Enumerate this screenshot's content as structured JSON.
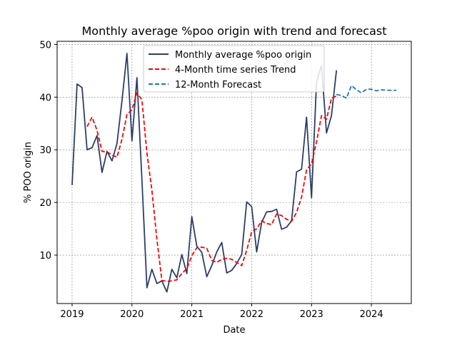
{
  "chart_data": {
    "type": "line",
    "title": "Monthly average %poo origin with trend and forecast",
    "xlabel": "Date",
    "ylabel": "% POO origin",
    "x_ticks": [
      "2019",
      "2020",
      "2021",
      "2022",
      "2023",
      "2024"
    ],
    "y_ticks": [
      "10",
      "20",
      "30",
      "40",
      "50"
    ],
    "xlim": [
      "2018-10",
      "2024-09"
    ],
    "ylim": [
      0.8,
      50.6
    ],
    "grid": true,
    "grid_style": "dashed gray",
    "legend_position": "top-center",
    "series": [
      {
        "name": "Monthly average %poo origin",
        "color": "#2c3e6b",
        "style": "solid",
        "points": [
          [
            "2019-01",
            23.3
          ],
          [
            "2019-02",
            42.5
          ],
          [
            "2019-03",
            41.8
          ],
          [
            "2019-04",
            30.0
          ],
          [
            "2019-05",
            30.4
          ],
          [
            "2019-06",
            32.7
          ],
          [
            "2019-07",
            25.7
          ],
          [
            "2019-08",
            29.7
          ],
          [
            "2019-09",
            27.9
          ],
          [
            "2019-10",
            31.2
          ],
          [
            "2019-11",
            39.3
          ],
          [
            "2019-12",
            48.3
          ],
          [
            "2020-01",
            31.7
          ],
          [
            "2020-02",
            43.7
          ],
          [
            "2020-03",
            24.3
          ],
          [
            "2020-04",
            3.8
          ],
          [
            "2020-05",
            7.3
          ],
          [
            "2020-06",
            4.6
          ],
          [
            "2020-07",
            5.1
          ],
          [
            "2020-08",
            3.0
          ],
          [
            "2020-09",
            7.3
          ],
          [
            "2020-10",
            5.7
          ],
          [
            "2020-11",
            10.1
          ],
          [
            "2020-12",
            6.5
          ],
          [
            "2021-01",
            17.3
          ],
          [
            "2021-02",
            11.7
          ],
          [
            "2021-03",
            10.5
          ],
          [
            "2021-04",
            5.9
          ],
          [
            "2021-05",
            8.0
          ],
          [
            "2021-06",
            10.6
          ],
          [
            "2021-07",
            12.4
          ],
          [
            "2021-08",
            6.6
          ],
          [
            "2021-09",
            7.1
          ],
          [
            "2021-10",
            8.4
          ],
          [
            "2021-11",
            10.1
          ],
          [
            "2021-12",
            20.1
          ],
          [
            "2022-01",
            19.2
          ],
          [
            "2022-02",
            10.6
          ],
          [
            "2022-03",
            16.2
          ],
          [
            "2022-04",
            18.2
          ],
          [
            "2022-05",
            18.3
          ],
          [
            "2022-06",
            18.7
          ],
          [
            "2022-07",
            14.9
          ],
          [
            "2022-08",
            15.3
          ],
          [
            "2022-09",
            16.5
          ],
          [
            "2022-10",
            25.8
          ],
          [
            "2022-11",
            26.3
          ],
          [
            "2022-12",
            36.2
          ],
          [
            "2023-01",
            20.9
          ],
          [
            "2023-02",
            42.9
          ],
          [
            "2023-03",
            46.0
          ],
          [
            "2023-04",
            33.2
          ],
          [
            "2023-05",
            36.5
          ],
          [
            "2023-06",
            45.1
          ]
        ]
      },
      {
        "name": "4-Month time series Trend",
        "color": "#ff0000",
        "style": "dashed",
        "points": [
          [
            "2019-04",
            34.4
          ],
          [
            "2019-05",
            36.2
          ],
          [
            "2019-06",
            33.7
          ],
          [
            "2019-07",
            29.7
          ],
          [
            "2019-08",
            29.6
          ],
          [
            "2019-09",
            29.0
          ],
          [
            "2019-10",
            28.6
          ],
          [
            "2019-11",
            32.0
          ],
          [
            "2019-12",
            36.7
          ],
          [
            "2020-01",
            37.6
          ],
          [
            "2020-02",
            40.8
          ],
          [
            "2020-03",
            39.5
          ],
          [
            "2020-04",
            29.4
          ],
          [
            "2020-05",
            22.3
          ],
          [
            "2020-06",
            13.0
          ],
          [
            "2020-07",
            5.2
          ],
          [
            "2020-08",
            5.0
          ],
          [
            "2020-09",
            5.1
          ],
          [
            "2020-10",
            5.3
          ],
          [
            "2020-11",
            6.5
          ],
          [
            "2020-12",
            7.4
          ],
          [
            "2021-01",
            9.9
          ],
          [
            "2021-02",
            11.4
          ],
          [
            "2021-03",
            11.5
          ],
          [
            "2021-04",
            11.3
          ],
          [
            "2021-05",
            9.0
          ],
          [
            "2021-06",
            8.6
          ],
          [
            "2021-07",
            9.2
          ],
          [
            "2021-08",
            9.4
          ],
          [
            "2021-09",
            9.2
          ],
          [
            "2021-10",
            8.6
          ],
          [
            "2021-11",
            8.0
          ],
          [
            "2021-12",
            10.9
          ],
          [
            "2022-01",
            14.4
          ],
          [
            "2022-02",
            15.0
          ],
          [
            "2022-03",
            16.5
          ],
          [
            "2022-04",
            16.0
          ],
          [
            "2022-05",
            15.8
          ],
          [
            "2022-06",
            17.8
          ],
          [
            "2022-07",
            17.5
          ],
          [
            "2022-08",
            16.8
          ],
          [
            "2022-09",
            16.4
          ],
          [
            "2022-10",
            18.1
          ],
          [
            "2022-11",
            21.0
          ],
          [
            "2022-12",
            26.2
          ],
          [
            "2023-01",
            27.3
          ],
          [
            "2023-02",
            31.5
          ],
          [
            "2023-03",
            36.5
          ],
          [
            "2023-04",
            35.8
          ],
          [
            "2023-05",
            39.8
          ],
          [
            "2023-06",
            40.2
          ]
        ]
      },
      {
        "name": "12-Month Forecast",
        "color": "#1f77b4",
        "style": "dashed",
        "points": [
          [
            "2023-06",
            40.5
          ],
          [
            "2023-07",
            40.3
          ],
          [
            "2023-08",
            39.8
          ],
          [
            "2023-09",
            42.2
          ],
          [
            "2023-10",
            41.4
          ],
          [
            "2023-11",
            40.8
          ],
          [
            "2023-12",
            41.5
          ],
          [
            "2024-01",
            41.5
          ],
          [
            "2024-02",
            41.2
          ],
          [
            "2024-03",
            41.4
          ],
          [
            "2024-04",
            41.3
          ],
          [
            "2024-05",
            41.3
          ],
          [
            "2024-06",
            41.3
          ]
        ]
      }
    ]
  }
}
